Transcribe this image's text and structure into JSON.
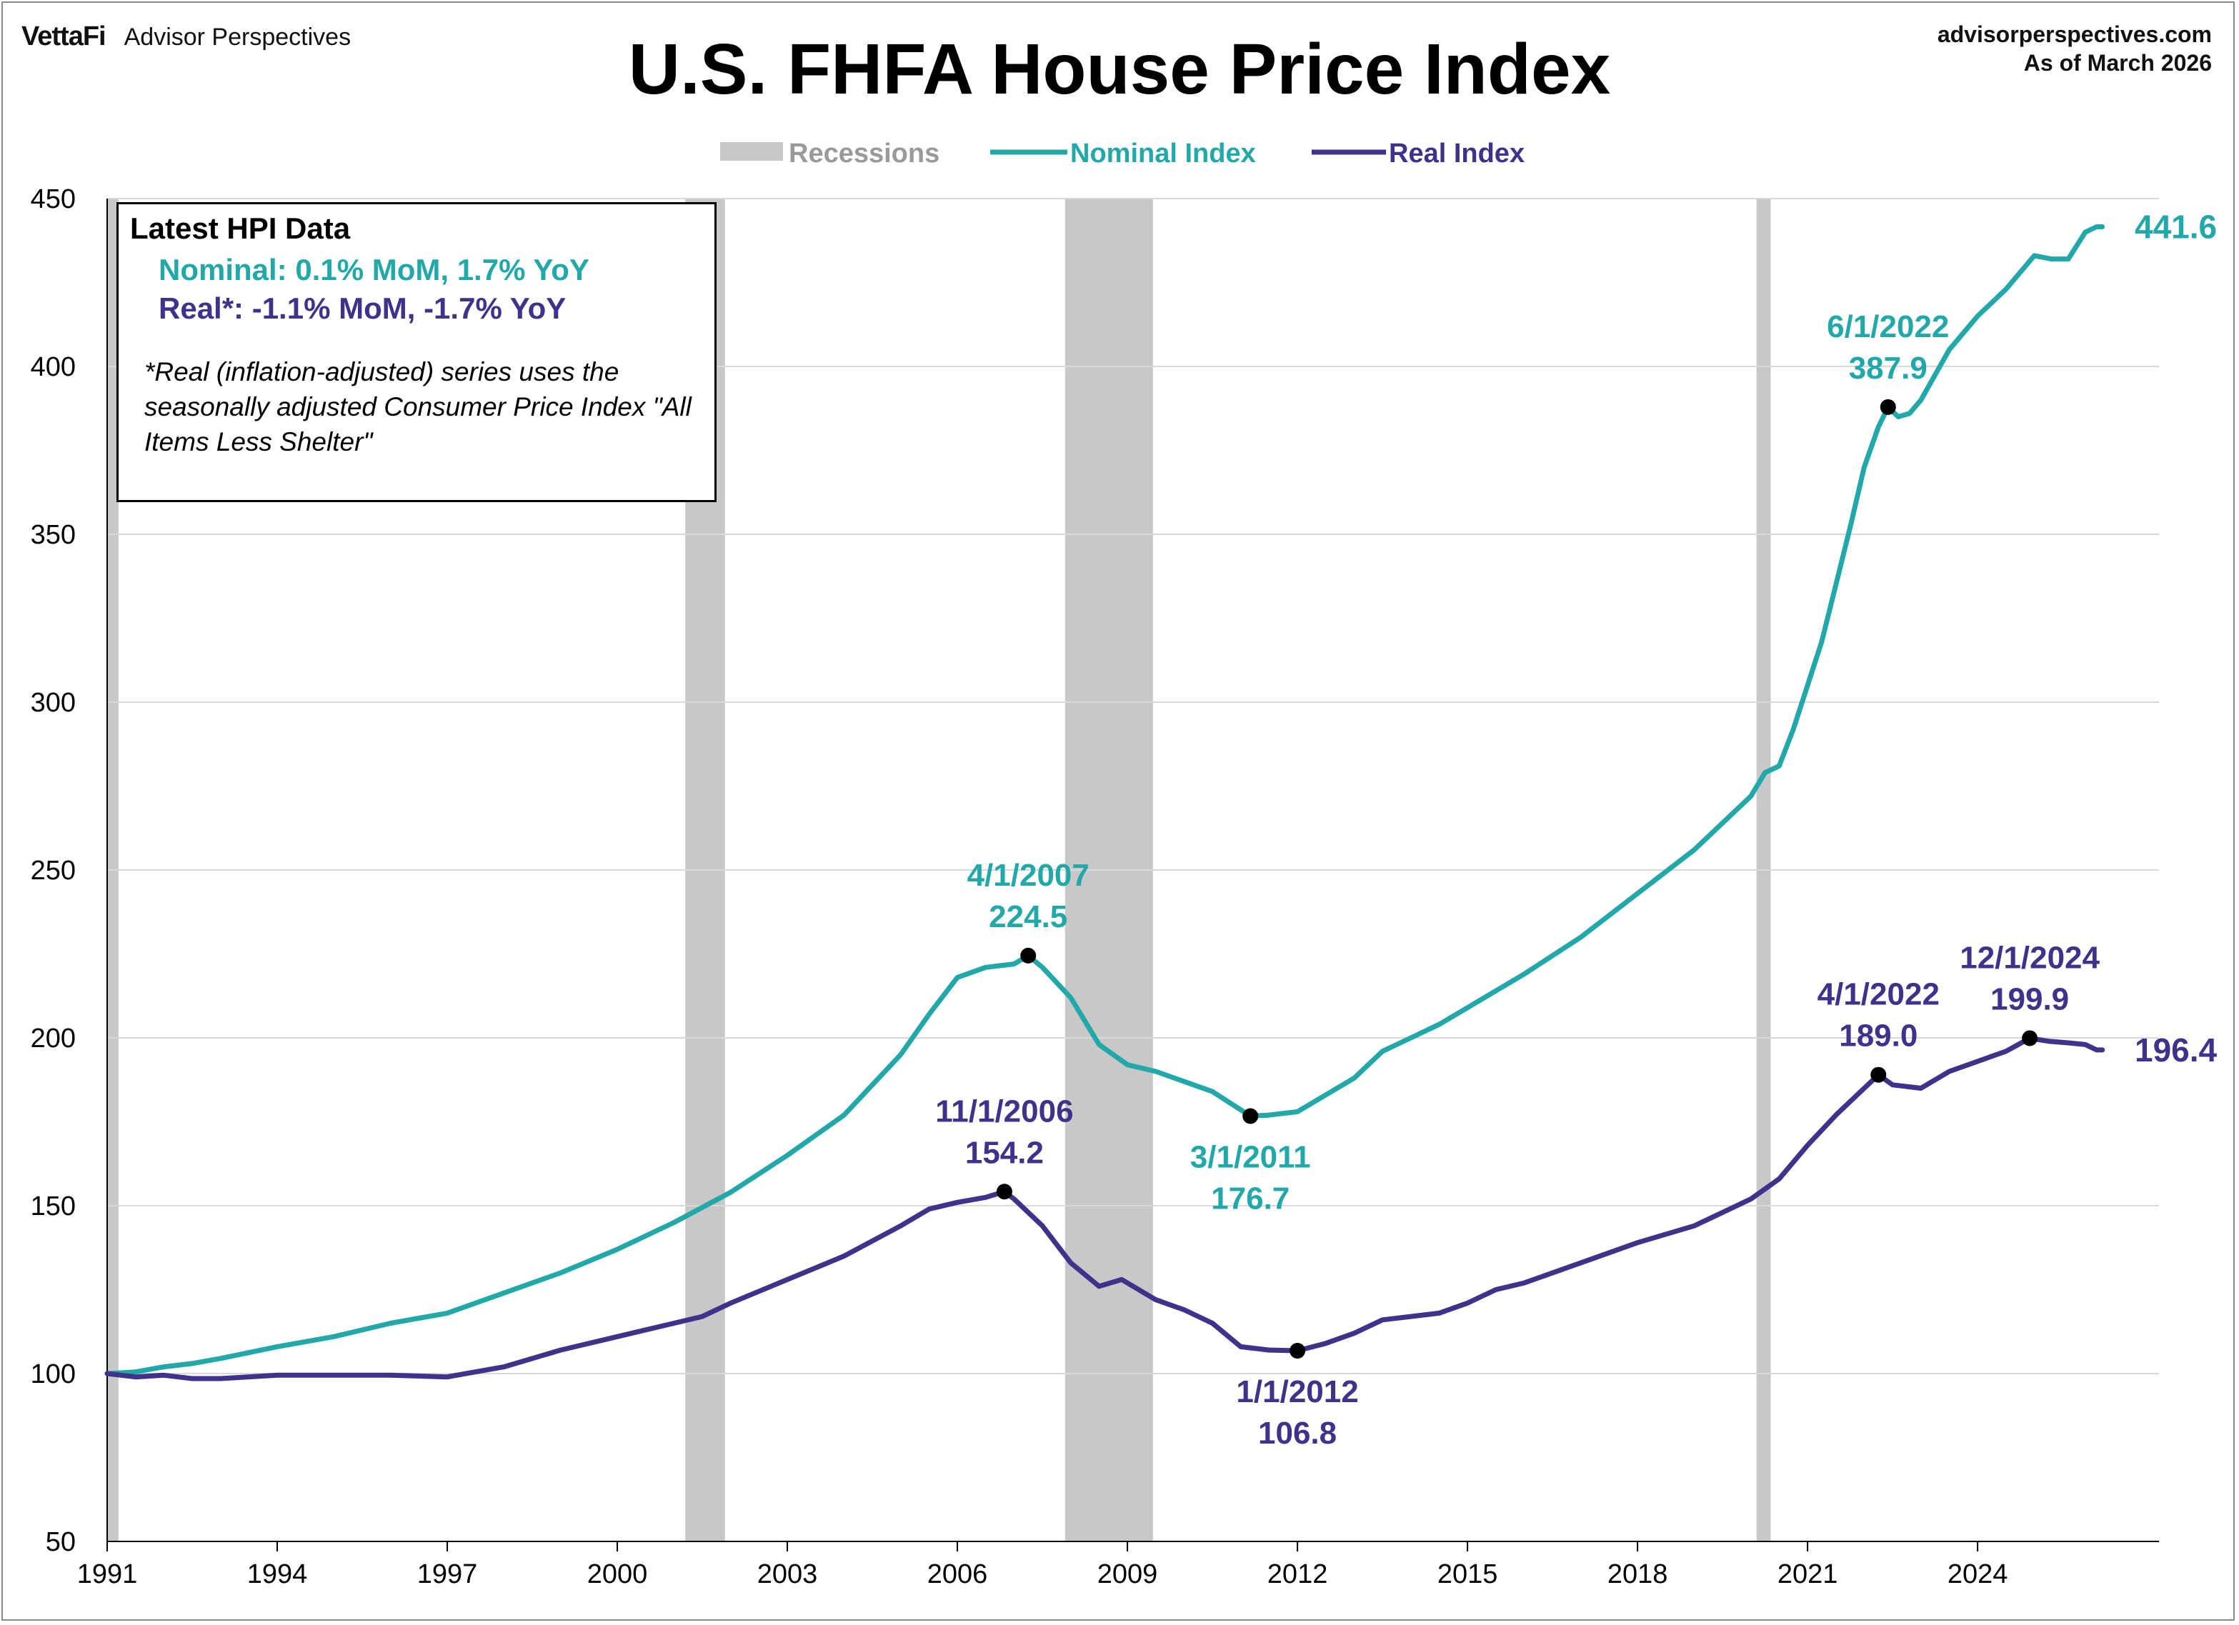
{
  "header": {
    "brand_primary": "VettaFi",
    "brand_secondary": "Advisor Perspectives",
    "site": "advisorperspectives.com",
    "as_of": "As of March 2026"
  },
  "info_box": {
    "heading": "Latest HPI Data",
    "nominal_line": "Nominal:  0.1% MoM, 1.7% YoY",
    "real_line": "Real*:  -1.1% MoM, -1.7% YoY",
    "note": "*Real (inflation-adjusted) series uses the seasonally adjusted Consumer Price Index \"All Items Less Shelter\""
  },
  "colors": {
    "nominal": "#22a8a8",
    "real": "#40318a",
    "recession": "#c8c8c8",
    "grid": "#d9d9d9"
  },
  "chart_data": {
    "type": "line",
    "title": "U.S. FHFA House Price Index",
    "xlabel": "",
    "ylabel": "",
    "xlim": [
      1991,
      2027.2
    ],
    "ylim": [
      50,
      450
    ],
    "y_ticks": [
      50,
      100,
      150,
      200,
      250,
      300,
      350,
      400,
      450
    ],
    "x_ticks": [
      1991,
      1994,
      1997,
      2000,
      2003,
      2006,
      2009,
      2012,
      2015,
      2018,
      2021,
      2024
    ],
    "x_tick_labels": [
      "1991",
      "1994",
      "1997",
      "2000",
      "2003",
      "2006",
      "2009",
      "2012",
      "2015",
      "2018",
      "2021",
      "2024"
    ],
    "grid": "horizontal",
    "legend": {
      "placement": "top-center",
      "entries": [
        "Recessions",
        "Nominal Index",
        "Real Index"
      ]
    },
    "recessions": [
      {
        "start": 1991.0,
        "end": 1991.2
      },
      {
        "start": 2001.2,
        "end": 2001.9
      },
      {
        "start": 2007.9,
        "end": 2009.45
      },
      {
        "start": 2020.1,
        "end": 2020.35
      }
    ],
    "series": [
      {
        "name": "Nominal Index",
        "color": "#22a8a8",
        "x": [
          1991.0,
          1991.5,
          1992.0,
          1992.5,
          1993.0,
          1994.0,
          1995.0,
          1996.0,
          1997.0,
          1998.0,
          1999.0,
          2000.0,
          2001.0,
          2002.0,
          2003.0,
          2004.0,
          2005.0,
          2005.5,
          2006.0,
          2006.5,
          2007.0,
          2007.25,
          2007.5,
          2008.0,
          2008.5,
          2009.0,
          2009.5,
          2010.0,
          2010.5,
          2011.17,
          2011.5,
          2012.0,
          2012.5,
          2013.0,
          2013.5,
          2014.0,
          2014.5,
          2015.0,
          2016.0,
          2017.0,
          2018.0,
          2019.0,
          2019.5,
          2020.0,
          2020.25,
          2020.5,
          2020.75,
          2021.0,
          2021.25,
          2021.5,
          2021.75,
          2022.0,
          2022.25,
          2022.42,
          2022.6,
          2022.8,
          2023.0,
          2023.5,
          2024.0,
          2024.5,
          2025.0,
          2025.3,
          2025.6,
          2025.9,
          2026.1,
          2026.2
        ],
        "values": [
          100.0,
          100.5,
          102.0,
          103.0,
          104.5,
          108.0,
          111.0,
          115.0,
          118.0,
          124.0,
          130.0,
          137.0,
          145.0,
          154.0,
          165.0,
          177.0,
          195.0,
          207.0,
          218.0,
          221.0,
          222.0,
          224.5,
          221.0,
          212.0,
          198.0,
          192.0,
          190.0,
          187.0,
          184.0,
          176.7,
          177.0,
          178.0,
          183.0,
          188.0,
          196.0,
          200.0,
          204.0,
          209.0,
          219.0,
          230.0,
          243.0,
          256.0,
          264.0,
          272.0,
          279.0,
          281.0,
          292.0,
          305.0,
          318.0,
          335.0,
          352.0,
          370.0,
          382.0,
          387.9,
          385.0,
          386.0,
          390.0,
          405.0,
          415.0,
          423.0,
          433.0,
          432.0,
          432.0,
          440.0,
          441.6,
          441.6
        ]
      },
      {
        "name": "Real Index",
        "color": "#40318a",
        "x": [
          1991.0,
          1991.5,
          1992.0,
          1992.5,
          1993.0,
          1994.0,
          1995.0,
          1996.0,
          1997.0,
          1998.0,
          1999.0,
          2000.0,
          2001.0,
          2001.5,
          2002.0,
          2003.0,
          2004.0,
          2005.0,
          2005.5,
          2006.0,
          2006.5,
          2006.83,
          2007.0,
          2007.5,
          2008.0,
          2008.5,
          2008.9,
          2009.5,
          2010.0,
          2010.5,
          2011.0,
          2011.5,
          2012.0,
          2012.5,
          2013.0,
          2013.5,
          2014.0,
          2014.5,
          2015.0,
          2015.5,
          2016.0,
          2017.0,
          2018.0,
          2019.0,
          2019.5,
          2020.0,
          2020.5,
          2021.0,
          2021.5,
          2022.0,
          2022.25,
          2022.5,
          2023.0,
          2023.5,
          2024.0,
          2024.5,
          2024.92,
          2025.25,
          2025.6,
          2025.9,
          2026.1,
          2026.2
        ],
        "values": [
          100.0,
          99.0,
          99.5,
          98.5,
          98.5,
          99.5,
          99.5,
          99.5,
          99.0,
          102.0,
          107.0,
          111.0,
          115.0,
          117.0,
          121.0,
          128.0,
          135.0,
          144.0,
          149.0,
          151.0,
          152.5,
          154.2,
          152.0,
          144.0,
          133.0,
          126.0,
          128.0,
          122.0,
          119.0,
          115.0,
          108.0,
          107.0,
          106.8,
          109.0,
          112.0,
          116.0,
          117.0,
          118.0,
          121.0,
          125.0,
          127.0,
          133.0,
          139.0,
          144.0,
          148.0,
          152.0,
          158.0,
          168.0,
          177.0,
          185.0,
          189.0,
          186.0,
          185.0,
          190.0,
          193.0,
          196.0,
          199.9,
          199.0,
          198.5,
          198.0,
          196.4,
          196.4
        ]
      }
    ],
    "annotations": [
      {
        "series": "Nominal Index",
        "x": 2007.25,
        "y": 224.5,
        "date": "4/1/2007",
        "value": "224.5",
        "position": "above"
      },
      {
        "series": "Nominal Index",
        "x": 2011.17,
        "y": 176.7,
        "date": "3/1/2011",
        "value": "176.7",
        "position": "below"
      },
      {
        "series": "Nominal Index",
        "x": 2022.42,
        "y": 387.9,
        "date": "6/1/2022",
        "value": "387.9",
        "position": "above"
      },
      {
        "series": "Real Index",
        "x": 2006.83,
        "y": 154.2,
        "date": "11/1/2006",
        "value": "154.2",
        "position": "above"
      },
      {
        "series": "Real Index",
        "x": 2012.0,
        "y": 106.8,
        "date": "1/1/2012",
        "value": "106.8",
        "position": "below"
      },
      {
        "series": "Real Index",
        "x": 2022.25,
        "y": 189.0,
        "date": "4/1/2022",
        "value": "189.0",
        "position": "above"
      },
      {
        "series": "Real Index",
        "x": 2024.92,
        "y": 199.9,
        "date": "12/1/2024",
        "value": "199.9",
        "position": "above"
      }
    ],
    "end_labels": [
      {
        "series": "Nominal Index",
        "value": "441.6"
      },
      {
        "series": "Real Index",
        "value": "196.4"
      }
    ]
  }
}
